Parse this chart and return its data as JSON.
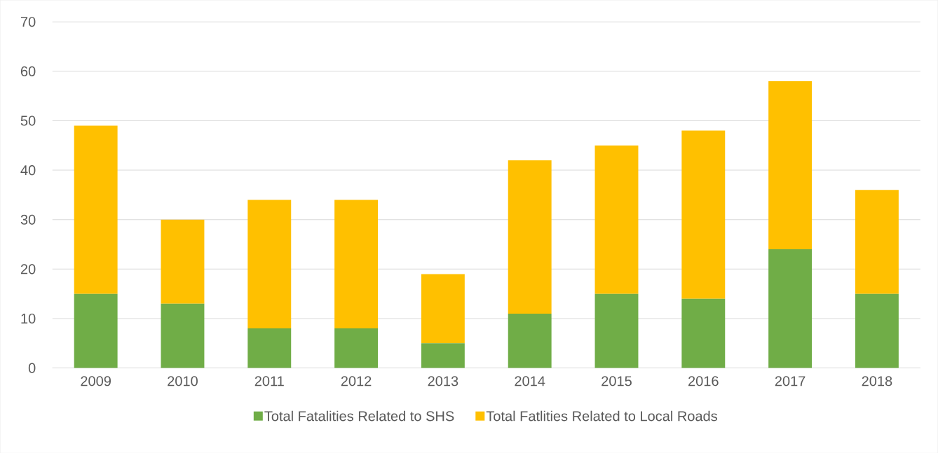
{
  "chart_data": {
    "type": "bar",
    "stacked": true,
    "categories": [
      "2009",
      "2010",
      "2011",
      "2012",
      "2013",
      "2014",
      "2015",
      "2016",
      "2017",
      "2018"
    ],
    "series": [
      {
        "name": "Total Fatalities Related to SHS",
        "color": "#70ad47",
        "values": [
          15,
          13,
          8,
          8,
          5,
          11,
          15,
          14,
          24,
          15
        ]
      },
      {
        "name": "Total Fatlities Related to Local Roads",
        "color": "#ffc000",
        "values": [
          34,
          17,
          26,
          26,
          14,
          31,
          30,
          34,
          34,
          21
        ]
      }
    ],
    "ylim": [
      0,
      70
    ],
    "yticks": [
      0,
      10,
      20,
      30,
      40,
      50,
      60,
      70
    ],
    "grid": "y",
    "legend": "bottom"
  }
}
